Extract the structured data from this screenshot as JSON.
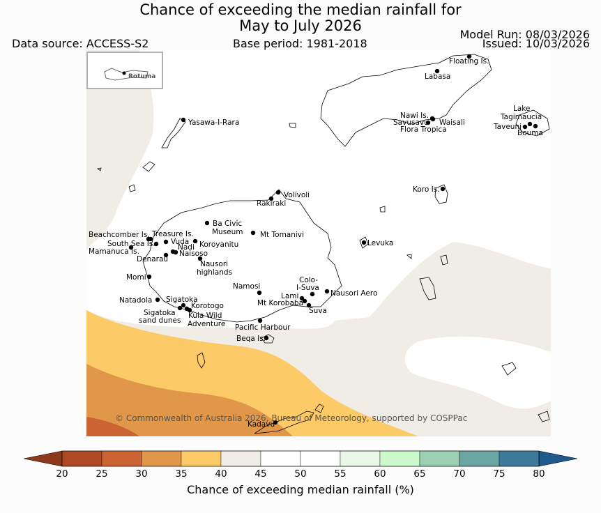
{
  "header": {
    "title_line1": "Chance of exceeding the median rainfall for",
    "title_line2": "May to July 2026",
    "data_source": "Data source: ACCESS-S2",
    "base_period": "Base period: 1981-2018",
    "model_run": "Model Run: 08/03/2026",
    "issued": "Issued: 10/03/2026"
  },
  "map": {
    "inset_label": "Rotuma",
    "copyright": "© Commonwealth of Australia 2026, Bureau of Meteorology, supported by COSPPac",
    "places": [
      {
        "name": "Floating Is."
      },
      {
        "name": "Labasa"
      },
      {
        "name": "Nawi Is."
      },
      {
        "name": "Savusavu"
      },
      {
        "name": "Waisali"
      },
      {
        "name": "Flora Tropica"
      },
      {
        "name": "Lake"
      },
      {
        "name": "Tagimaucia"
      },
      {
        "name": "Taveuni"
      },
      {
        "name": "Bouma"
      },
      {
        "name": "Yasawa-I-Rara"
      },
      {
        "name": "Volivoli"
      },
      {
        "name": "Rakiraki"
      },
      {
        "name": "Koro Is."
      },
      {
        "name": "Ba Civic"
      },
      {
        "name": "Museum"
      },
      {
        "name": "Mt Tomanivi"
      },
      {
        "name": "Levuka"
      },
      {
        "name": "Beachcomber Is."
      },
      {
        "name": "Treasure Is."
      },
      {
        "name": "South Sea Is."
      },
      {
        "name": "Vuda"
      },
      {
        "name": "Koroyanitu"
      },
      {
        "name": "Nadi"
      },
      {
        "name": "Mamanuca Is."
      },
      {
        "name": "Naisoso"
      },
      {
        "name": "Denarau"
      },
      {
        "name": "Nausori"
      },
      {
        "name": "highlands"
      },
      {
        "name": "Momi"
      },
      {
        "name": "Colo-"
      },
      {
        "name": "I-Suva"
      },
      {
        "name": "Namosi"
      },
      {
        "name": "Nausori Aero"
      },
      {
        "name": "Lami"
      },
      {
        "name": "Mt Korobaba"
      },
      {
        "name": "Natadola"
      },
      {
        "name": "Sigatoka"
      },
      {
        "name": "Korotogo"
      },
      {
        "name": "Suva"
      },
      {
        "name": "Sigatoka"
      },
      {
        "name": "sand dunes"
      },
      {
        "name": "Kula Wild"
      },
      {
        "name": "Adventure"
      },
      {
        "name": "Pacific Harbour"
      },
      {
        "name": "Beqa Is."
      },
      {
        "name": "Kadavu"
      }
    ]
  },
  "legend": {
    "label": "Chance of exceeding median rainfall (%)",
    "ticks": [
      "20",
      "25",
      "30",
      "35",
      "40",
      "45",
      "50",
      "55",
      "60",
      "65",
      "70",
      "75",
      "80"
    ],
    "bins": [
      {
        "from": "20",
        "to": "25",
        "color": "#b04a25"
      },
      {
        "from": "25",
        "to": "30",
        "color": "#cb6332"
      },
      {
        "from": "30",
        "to": "35",
        "color": "#e0974a"
      },
      {
        "from": "35",
        "to": "40",
        "color": "#fdca68"
      },
      {
        "from": "40",
        "to": "45",
        "color": "#f0ece6"
      },
      {
        "from": "45",
        "to": "50",
        "color": "#ffffff"
      },
      {
        "from": "50",
        "to": "55",
        "color": "#ffffff"
      },
      {
        "from": "55",
        "to": "60",
        "color": "#e8f7e6"
      },
      {
        "from": "60",
        "to": "65",
        "color": "#ccfacc"
      },
      {
        "from": "65",
        "to": "70",
        "color": "#9cceb2"
      },
      {
        "from": "70",
        "to": "75",
        "color": "#6aa6a4"
      },
      {
        "from": "75",
        "to": "80",
        "color": "#3f7a9e"
      }
    ],
    "under_color": "#8e3a1d",
    "over_color": "#1f5a8a"
  }
}
